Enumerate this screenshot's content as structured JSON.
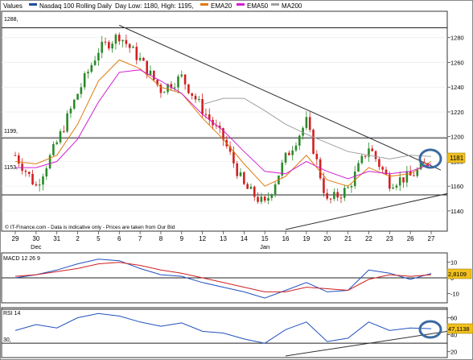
{
  "legend": {
    "values_label": "Values",
    "instrument": "Nasdaq 100 Rolling Daily",
    "day_low": "Day Low: 1180, High: 1195,",
    "ema20": "EMA20",
    "ema50": "EMA50",
    "ma200": "MA200"
  },
  "colors": {
    "price": "#2a8a2a",
    "price_down": "#d02020",
    "ema20": "#e07a10",
    "ema50": "#d020d0",
    "ma200": "#a0a0a0",
    "macd": "#2050c0",
    "signal": "#d02020",
    "rsi": "#2050c0",
    "trendline": "#303030",
    "circle": "#3a6aa0",
    "price_box": "#f0c020"
  },
  "price_panel": {
    "credit": "© IT-Finance.com - Data is indicative only - Prices are taken from Our Bid",
    "level_labels": [
      "1288,",
      "1199,",
      "1153,"
    ],
    "current_price": "1181"
  },
  "x_axis": {
    "labels": [
      "29",
      "30",
      "31",
      "2",
      "5",
      "6",
      "7",
      "8",
      "9",
      "12",
      "13",
      "14",
      "15",
      "16",
      "19",
      "20",
      "21",
      "22",
      "23",
      "26",
      "27"
    ],
    "month_labels": [
      "Dec",
      "Jan"
    ]
  },
  "macd_panel": {
    "title": "MACD 12 26 9",
    "value": "2,8109",
    "ticks": [
      "10",
      "0",
      "-10"
    ]
  },
  "rsi_panel": {
    "title": "RSI 14",
    "value": "47,1138",
    "left_label": "30,",
    "ticks": [
      "60",
      "40",
      "20"
    ]
  },
  "chart_data": [
    {
      "type": "candlestick",
      "title": "Nasdaq 100 Rolling Daily",
      "ylim": [
        1125,
        1300
      ],
      "yticks": [
        1140,
        1160,
        1180,
        1200,
        1220,
        1240,
        1260,
        1280
      ],
      "x": [
        "29",
        "30",
        "31",
        "2",
        "5",
        "6",
        "7",
        "8",
        "9",
        "12",
        "13",
        "14",
        "15",
        "16",
        "19",
        "20",
        "21",
        "22",
        "23",
        "26",
        "27"
      ],
      "series": [
        {
          "name": "Nasdaq 100 Rolling Daily",
          "values": [
            1185,
            1160,
            1195,
            1235,
            1270,
            1282,
            1262,
            1238,
            1248,
            1222,
            1198,
            1160,
            1145,
            1183,
            1212,
            1147,
            1158,
            1192,
            1163,
            1168,
            1181
          ]
        },
        {
          "name": "EMA20",
          "values": [
            1180,
            1178,
            1185,
            1210,
            1245,
            1262,
            1255,
            1240,
            1235,
            1215,
            1198,
            1178,
            1160,
            1168,
            1185,
            1165,
            1160,
            1175,
            1168,
            1170,
            1180
          ]
        },
        {
          "name": "EMA50",
          "values": [
            1175,
            1175,
            1180,
            1198,
            1228,
            1252,
            1254,
            1245,
            1235,
            1218,
            1205,
            1188,
            1172,
            1170,
            1180,
            1172,
            1166,
            1172,
            1170,
            1172,
            1178
          ]
        },
        {
          "name": "MA200",
          "values": [
            null,
            null,
            null,
            null,
            null,
            null,
            null,
            null,
            null,
            1226,
            1231,
            1231,
            1221,
            1210,
            1202,
            1195,
            1188,
            1185,
            1182,
            1185,
            1184
          ]
        }
      ],
      "horizontal_levels": [
        1288,
        1199,
        1153
      ]
    },
    {
      "type": "line",
      "title": "MACD 12 26 9",
      "ylim": [
        -15,
        15
      ],
      "yticks": [
        10,
        0,
        -10
      ],
      "series": [
        {
          "name": "MACD",
          "values": [
            0,
            2,
            5,
            9,
            12,
            11,
            6,
            2,
            1,
            -3,
            -6,
            -9,
            -13,
            -8,
            -3,
            -9,
            -8,
            5,
            3,
            -1,
            2.8109
          ]
        },
        {
          "name": "Signal",
          "values": [
            1,
            2,
            4,
            6,
            9,
            10,
            8,
            5,
            3,
            0,
            -3,
            -6,
            -9,
            -9,
            -6,
            -7,
            -8,
            -1,
            2,
            1,
            2
          ]
        }
      ]
    },
    {
      "type": "line",
      "title": "RSI 14",
      "ylim": [
        15,
        70
      ],
      "yticks": [
        60,
        40,
        20
      ],
      "series": [
        {
          "name": "RSI",
          "values": [
            45,
            52,
            48,
            60,
            65,
            62,
            55,
            50,
            54,
            44,
            42,
            35,
            30,
            46,
            55,
            32,
            36,
            55,
            45,
            48,
            47.1138
          ]
        }
      ]
    }
  ]
}
